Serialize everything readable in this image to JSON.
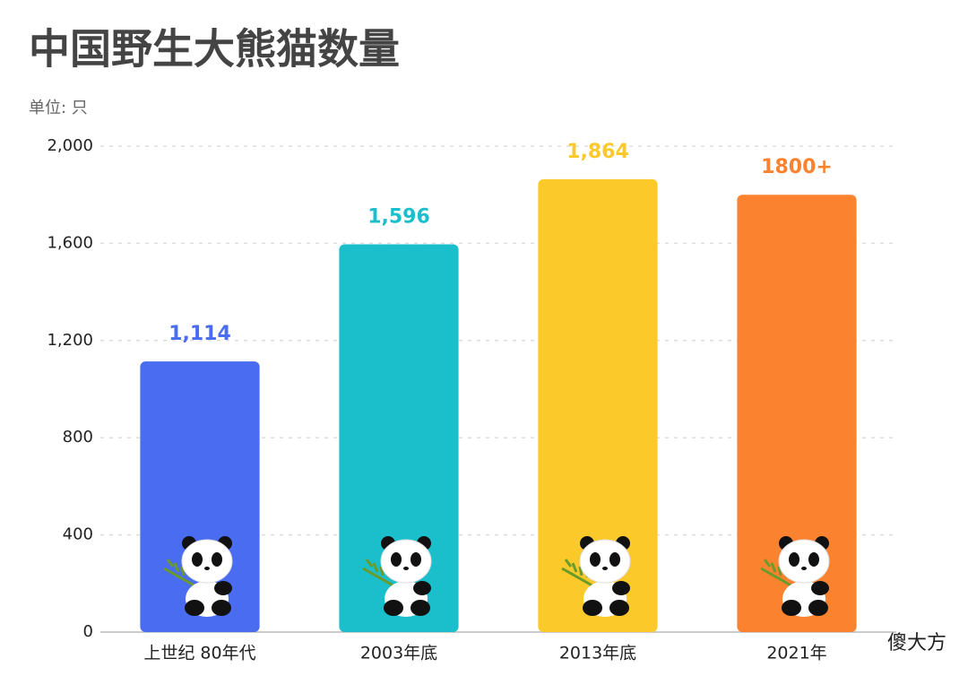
{
  "chart_data": {
    "type": "bar",
    "title": "中国野生大熊猫数量",
    "subtitle": "单位: 只",
    "watermark": "傻大方",
    "categories": [
      "上世纪 80年代",
      "2003年底",
      "2013年底",
      "2021年"
    ],
    "values": [
      1114,
      1596,
      1864,
      1800
    ],
    "value_labels": [
      "1,114",
      "1,596",
      "1,864",
      "1800+"
    ],
    "colors": [
      "#4a6cf0",
      "#1bbfcc",
      "#fcc92a",
      "#fb8330"
    ],
    "ylim": [
      0,
      2000
    ],
    "yticks": [
      0,
      400,
      800,
      {
        "value": 1200,
        "label": "1,200"
      },
      {
        "value": 1600,
        "label": "1,600"
      },
      {
        "value": 2000,
        "label": "2,000"
      }
    ],
    "grid": true
  }
}
